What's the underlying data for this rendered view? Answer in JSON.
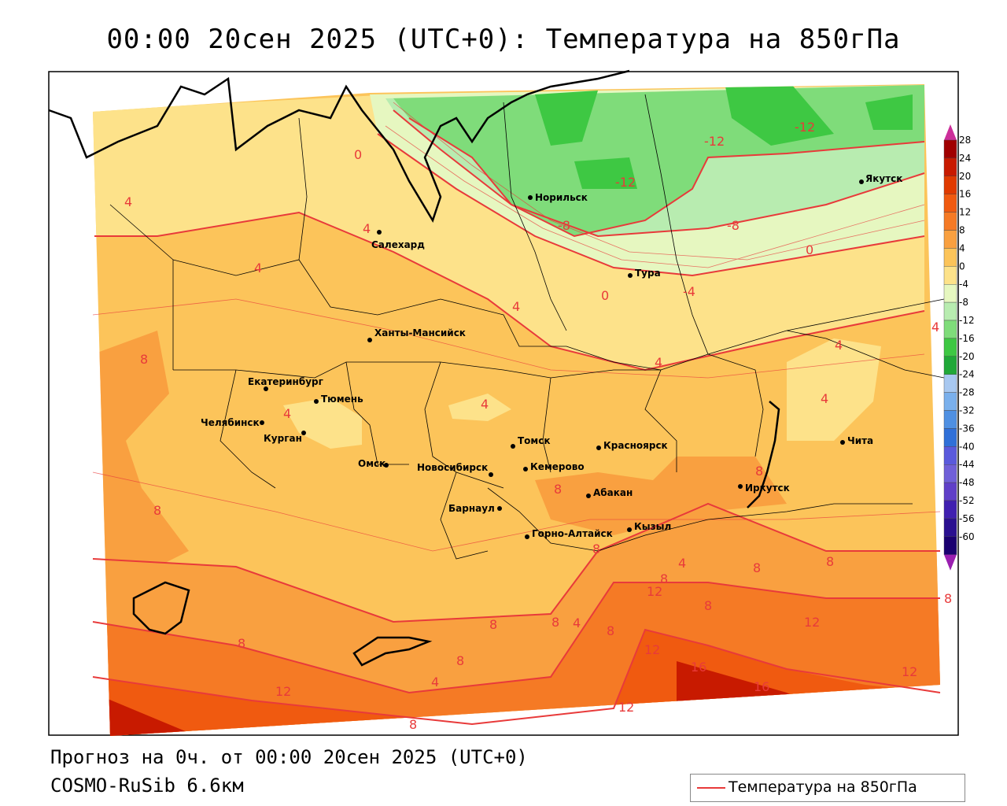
{
  "title": "00:00 20сен 2025 (UTC+0): Температура на 850гПа",
  "footer": {
    "forecast": "Прогноз на 0ч. от 00:00 20сен 2025 (UTC+0)",
    "model": "COSMO-RuSib 6.6км"
  },
  "legend": {
    "label": "Температура на 850гПа",
    "line_color": "#e83a3a"
  },
  "colorbar": {
    "labels": [
      "28",
      "24",
      "20",
      "16",
      "12",
      "8",
      "4",
      "0",
      "-4",
      "-8",
      "-12",
      "-16",
      "-20",
      "-24",
      "-28",
      "-32",
      "-36",
      "-40",
      "-44",
      "-48",
      "-52",
      "-56",
      "-60"
    ],
    "colors": [
      "#a00000",
      "#c81a00",
      "#e03a00",
      "#f05a10",
      "#f57a25",
      "#f9a040",
      "#fcc45a",
      "#fde28a",
      "#e6f7c0",
      "#b8ecb0",
      "#7fdc7a",
      "#3ec843",
      "#20a838",
      "#a8c8f0",
      "#7ab0ec",
      "#4f90e2",
      "#3070d8",
      "#5a5adc",
      "#7060d8",
      "#6040c8",
      "#4020b0",
      "#2a1090",
      "#1a0070"
    ]
  },
  "cities": [
    {
      "name": "Норильск"
    },
    {
      "name": "Якутск"
    },
    {
      "name": "Салехард"
    },
    {
      "name": "Тура"
    },
    {
      "name": "Ханты-Мансийск"
    },
    {
      "name": "Екатеринбург"
    },
    {
      "name": "Тюмень"
    },
    {
      "name": "Челябинск"
    },
    {
      "name": "Курган"
    },
    {
      "name": "Омск"
    },
    {
      "name": "Томск"
    },
    {
      "name": "Красноярск"
    },
    {
      "name": "Новосибирск"
    },
    {
      "name": "Кемерово"
    },
    {
      "name": "Абакан"
    },
    {
      "name": "Иркутск"
    },
    {
      "name": "Барнаул"
    },
    {
      "name": "Кызыл"
    },
    {
      "name": "Горно-Алтайск"
    },
    {
      "name": "Чита"
    }
  ],
  "isotherm_labels": [
    "-12",
    "-12",
    "-12",
    "-8",
    "-8",
    "0",
    "0",
    "-4",
    "4",
    "4",
    "4",
    "4",
    "0",
    "4",
    "8",
    "4",
    "4",
    "4",
    "4",
    "4",
    "8",
    "8",
    "8",
    "8",
    "8",
    "12",
    "8",
    "4",
    "8",
    "8",
    "12",
    "12",
    "16",
    "16",
    "12",
    "12",
    "8",
    "8",
    "8",
    "4",
    "8",
    "12",
    "8",
    "8",
    "4",
    "8"
  ]
}
